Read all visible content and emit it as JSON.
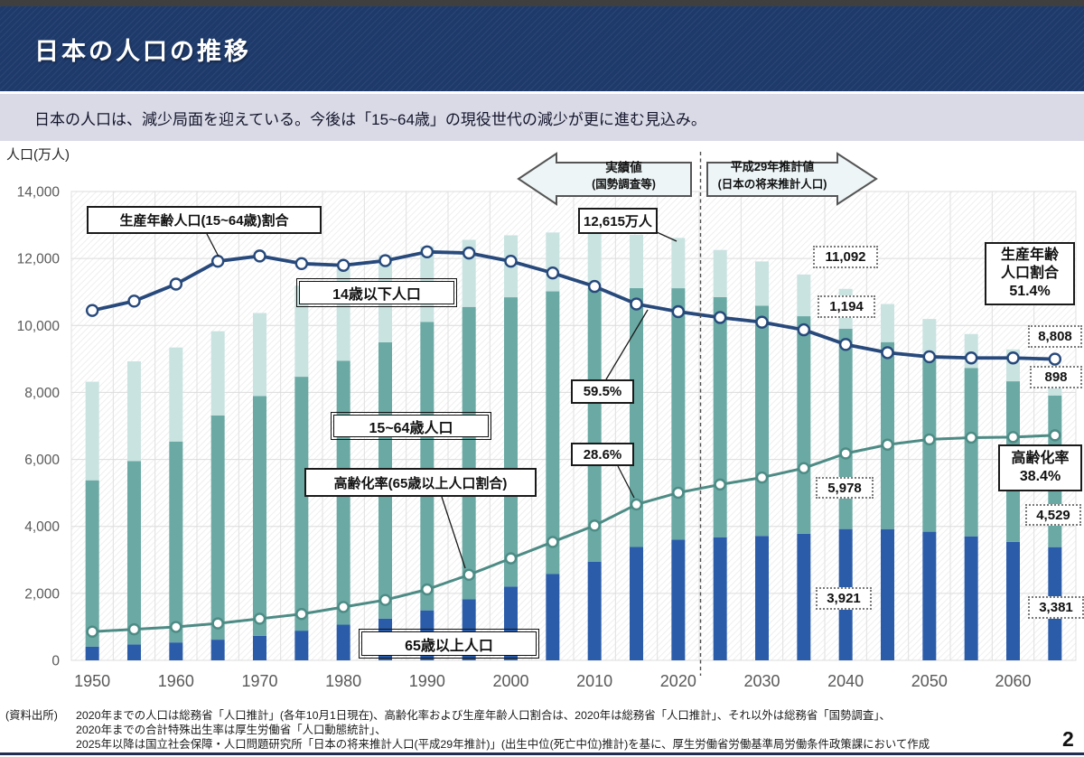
{
  "page": {
    "title": "日本の人口の推移",
    "subtitle": "日本の人口は、減少局面を迎えている。今後は「15~64歳」の現役世代の減少が更に進む見込み。",
    "y_axis_title": "人口(万人)",
    "page_number": "2"
  },
  "banners": {
    "actual": {
      "line1": "実績値",
      "line2": "(国勢調査等)"
    },
    "projection": {
      "line1": "平成29年推計値",
      "line2": "(日本の将来推計人口)"
    }
  },
  "labels": {
    "working_age_ratio": "生産年齢人口(15~64歳)割合",
    "under15": "14歳以下人口",
    "working_age": "15~64歳人口",
    "aging_rate": "高齢化率(65歳以上人口割合)",
    "over65": "65歳以上人口",
    "total_2020": "12,615万人",
    "working_age_ratio_2020": "59.5%",
    "aging_rate_2020": "28.6%",
    "ratio_final": {
      "line1": "生産年齢",
      "line2": "人口割合",
      "line3": "51.4%"
    },
    "aging_final": {
      "line1": "高齢化率",
      "line2": "38.4%"
    },
    "callout_total_2040": "11,092",
    "callout_under15_2040": "1,194",
    "callout_working_2040": "5,978",
    "callout_over65_2040": "3,921",
    "callout_total_2065": "8,808",
    "callout_under15_2065": "898",
    "callout_working_2065": "4,529",
    "callout_over65_2065": "3,381"
  },
  "footnote": {
    "label": "(資料出所)",
    "line1": "2020年までの人口は総務省「人口推計」(各年10月1日現在)、高齢化率および生産年齢人口割合は、2020年は総務省「人口推計」、それ以外は総務省「国勢調査」、",
    "line2": "2020年までの合計特殊出生率は厚生労働省「人口動態統計」、",
    "line3": "2025年以降は国立社会保障・人口問題研究所「日本の将来推計人口(平成29年推計)」(出生中位(死亡中位)推計)を基に、厚生労働省労働基準局労働条件政策課において作成"
  },
  "chart_data": {
    "type": "bar",
    "subtype": "stacked-bars-with-percent-lines",
    "x": [
      1950,
      1955,
      1960,
      1965,
      1970,
      1975,
      1980,
      1985,
      1990,
      1995,
      2000,
      2005,
      2010,
      2015,
      2020,
      2025,
      2030,
      2035,
      2040,
      2045,
      2050,
      2055,
      2060,
      2065
    ],
    "bar_series": [
      {
        "name": "65歳以上人口",
        "color": "#2b5caa",
        "values": [
          411,
          476,
          535,
          618,
          733,
          887,
          1065,
          1247,
          1493,
          1828,
          2204,
          2576,
          2948,
          3387,
          3603,
          3677,
          3716,
          3782,
          3921,
          3919,
          3841,
          3704,
          3540,
          3381
        ]
      },
      {
        "name": "15~64歳人口",
        "color": "#6aa9a4",
        "values": [
          4966,
          5473,
          6000,
          6693,
          7157,
          7581,
          7883,
          8251,
          8614,
          8726,
          8638,
          8442,
          8173,
          7728,
          7509,
          7170,
          6875,
          6494,
          5978,
          5584,
          5275,
          5028,
          4793,
          4529
        ]
      },
      {
        "name": "14歳以下人口",
        "color": "#c9e3e1",
        "values": [
          2943,
          2980,
          2807,
          2517,
          2482,
          2722,
          2751,
          2603,
          2254,
          2003,
          1851,
          1759,
          1684,
          1595,
          1503,
          1407,
          1321,
          1246,
          1194,
          1138,
          1077,
          1012,
          951,
          898
        ]
      }
    ],
    "line_series": [
      {
        "name": "生産年齢人口(15~64歳)割合",
        "color": "#27497b",
        "unit": "%",
        "values": [
          59.7,
          61.3,
          64.2,
          68.1,
          69.0,
          67.7,
          67.4,
          68.2,
          69.7,
          69.5,
          68.1,
          66.1,
          63.8,
          60.8,
          59.5,
          58.5,
          57.7,
          56.4,
          53.9,
          52.5,
          51.8,
          51.6,
          51.6,
          51.4
        ]
      },
      {
        "name": "高齢化率(65歳以上人口割合)",
        "color": "#4d8b85",
        "unit": "%",
        "values": [
          4.9,
          5.3,
          5.7,
          6.3,
          7.1,
          7.9,
          9.1,
          10.3,
          12.1,
          14.6,
          17.4,
          20.2,
          23.0,
          26.6,
          28.6,
          30.0,
          31.2,
          32.8,
          35.3,
          36.8,
          37.7,
          38.0,
          38.1,
          38.4
        ]
      }
    ],
    "y_axis": {
      "title": "人口(万人)",
      "min": 0,
      "max": 14000,
      "tick_step": 2000
    },
    "percent_axis": {
      "min": 0,
      "max": 80,
      "note": "hidden secondary axis for ratio lines"
    },
    "x_ticks": [
      1950,
      1960,
      1970,
      1980,
      1990,
      2000,
      2010,
      2020,
      2030,
      2040,
      2050,
      2060
    ],
    "projection_divider_between": [
      2020,
      2025
    ],
    "grid": true,
    "annotated_values": {
      "total_2020": 12615,
      "working_age_ratio_2020_pct": 59.5,
      "aging_rate_2020_pct": 28.6,
      "total_2040": 11092,
      "under15_2040": 1194,
      "working_age_2040": 5978,
      "over65_2040": 3921,
      "total_2065": 8808,
      "under15_2065": 898,
      "working_age_2065": 4529,
      "over65_2065": 3381,
      "working_age_ratio_2065_pct": 51.4,
      "aging_rate_2065_pct": 38.4
    }
  }
}
